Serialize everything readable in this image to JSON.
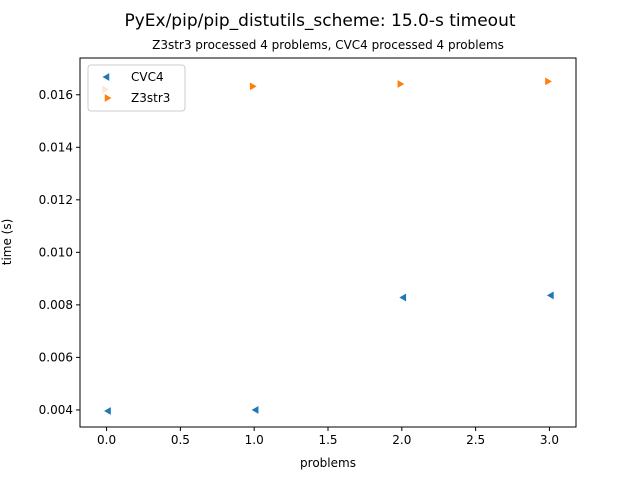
{
  "chart_data": {
    "type": "scatter",
    "title": "PyEx/pip/pip_distutils_scheme: 15.0-s timeout",
    "subtitle": "Z3str3 processed 4 problems, CVC4 processed 4 problems",
    "xlabel": "problems",
    "ylabel": "time (s)",
    "xlim": [
      -0.18,
      3.18
    ],
    "ylim": [
      0.00335,
      0.0174
    ],
    "xticks": [
      0.0,
      0.5,
      1.0,
      1.5,
      2.0,
      2.5,
      3.0
    ],
    "xtick_labels": [
      "0.0",
      "0.5",
      "1.0",
      "1.5",
      "2.0",
      "2.5",
      "3.0"
    ],
    "yticks": [
      0.004,
      0.006,
      0.008,
      0.01,
      0.012,
      0.014,
      0.016
    ],
    "ytick_labels": [
      "0.004",
      "0.006",
      "0.008",
      "0.010",
      "0.012",
      "0.014",
      "0.016"
    ],
    "legend_position": "top-left",
    "grid": false,
    "series": [
      {
        "name": "CVC4",
        "color": "#1f77b4",
        "marker": "triangle-left",
        "x": [
          0,
          1,
          2,
          3
        ],
        "y": [
          0.00396,
          0.004,
          0.00828,
          0.00836
        ]
      },
      {
        "name": "Z3str3",
        "color": "#ff7f0e",
        "marker": "triangle-right",
        "x": [
          0,
          1,
          2,
          3
        ],
        "y": [
          0.0162,
          0.01632,
          0.01641,
          0.01651
        ]
      }
    ]
  }
}
